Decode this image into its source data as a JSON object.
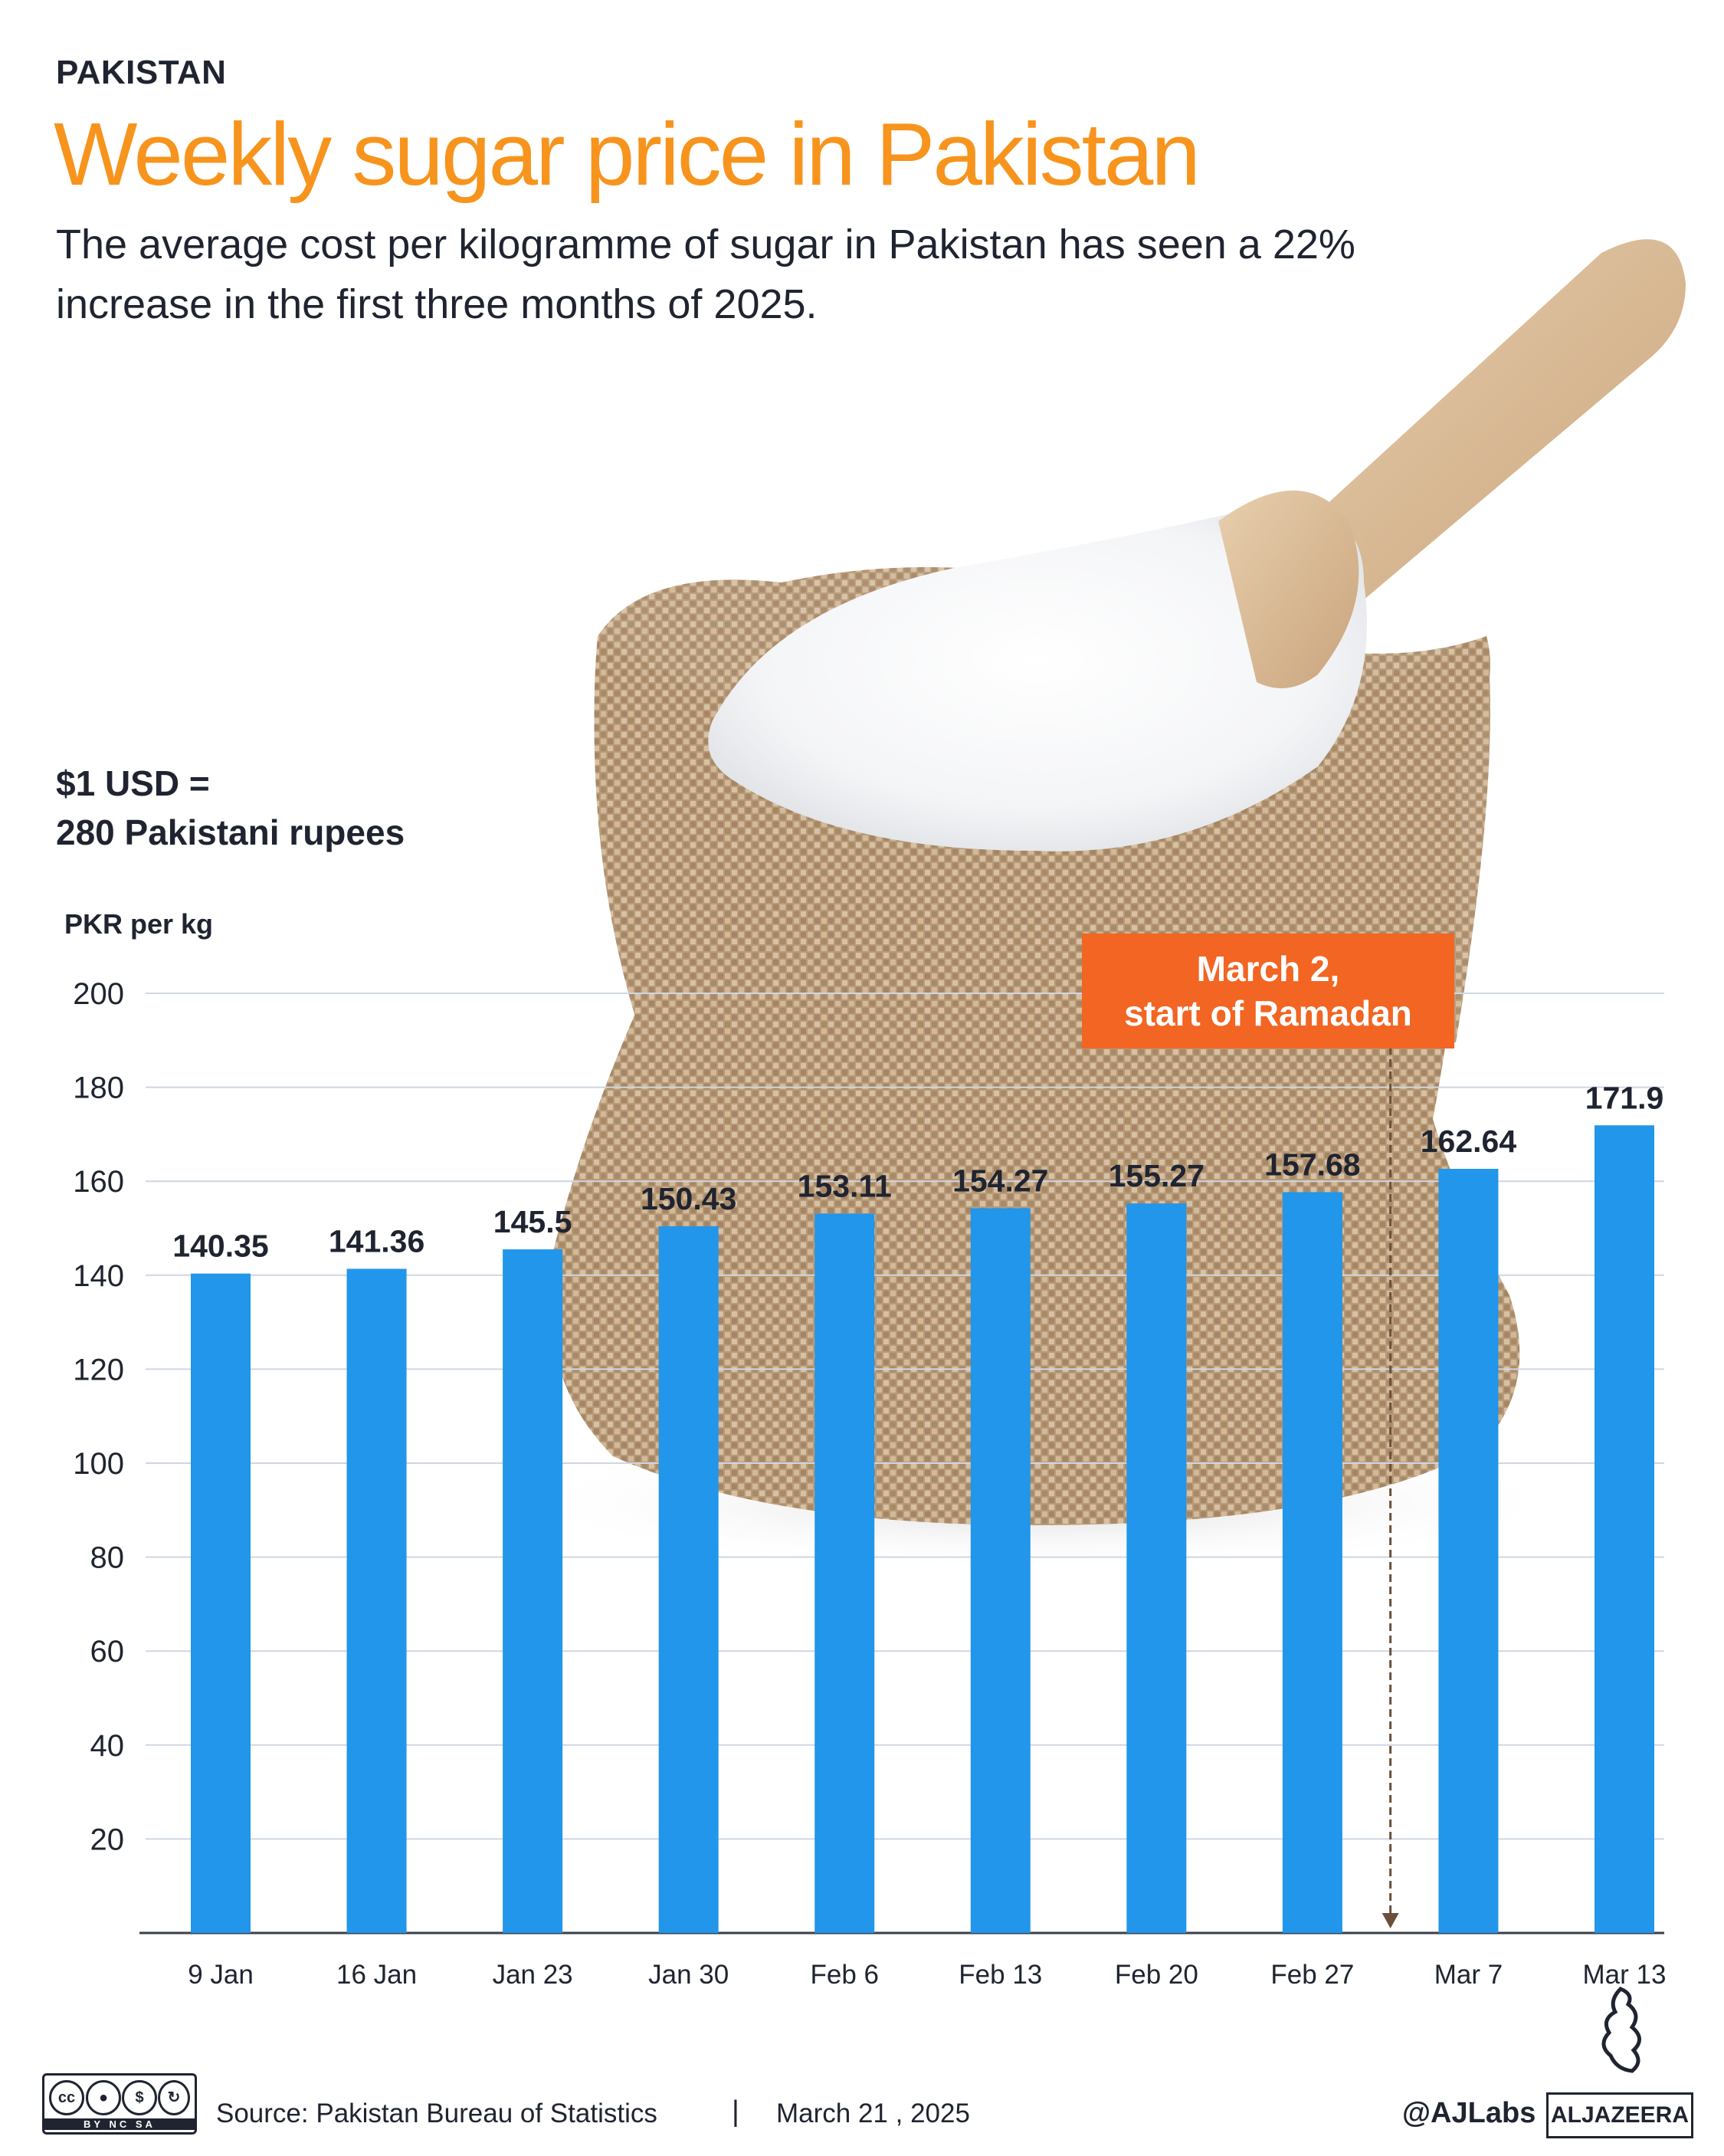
{
  "header": {
    "kicker": "PAKISTAN",
    "title": "Weekly sugar price in Pakistan",
    "subtitle": "The average cost per kilogramme of sugar in Pakistan has seen a 22% increase in the first three months of 2025."
  },
  "exchange_note": {
    "line1": "$1 USD =",
    "line2": "280 Pakistani rupees"
  },
  "chart_data": {
    "type": "bar",
    "title": "Weekly sugar price in Pakistan",
    "ylabel": "PKR per kg",
    "xlabel": "",
    "categories": [
      "9 Jan",
      "16 Jan",
      "Jan 23",
      "Jan 30",
      "Feb 6",
      "Feb 13",
      "Feb 20",
      "Feb 27",
      "Mar 7",
      "Mar 13"
    ],
    "values": [
      140.35,
      141.36,
      145.5,
      150.43,
      153.11,
      154.27,
      155.27,
      157.68,
      162.64,
      171.9
    ],
    "value_labels": [
      "140.35",
      "141.36",
      "145.5",
      "150.43",
      "153.11",
      "154.27",
      "155.27",
      "157.68",
      "162.64",
      "171.9"
    ],
    "ylim": [
      0,
      200
    ],
    "yticks": [
      20,
      40,
      60,
      80,
      100,
      120,
      140,
      160,
      180,
      200
    ],
    "grid": true,
    "bar_color": "#2196ea",
    "annotation": {
      "line1": "March 2,",
      "line2": "start of Ramadan",
      "between": [
        "Feb 27",
        "Mar 7"
      ],
      "color": "#f26522"
    }
  },
  "footer": {
    "source": "Source:  Pakistan Bureau of Statistics",
    "separator": "|",
    "date": "March 21 , 2025",
    "handle": "@AJLabs",
    "brand": "ALJAZEERA",
    "license_tags": "BY NC SA"
  },
  "colors": {
    "accent": "#f7941d",
    "text": "#1f2430",
    "bar": "#2196ea",
    "annotation": "#f26522"
  }
}
